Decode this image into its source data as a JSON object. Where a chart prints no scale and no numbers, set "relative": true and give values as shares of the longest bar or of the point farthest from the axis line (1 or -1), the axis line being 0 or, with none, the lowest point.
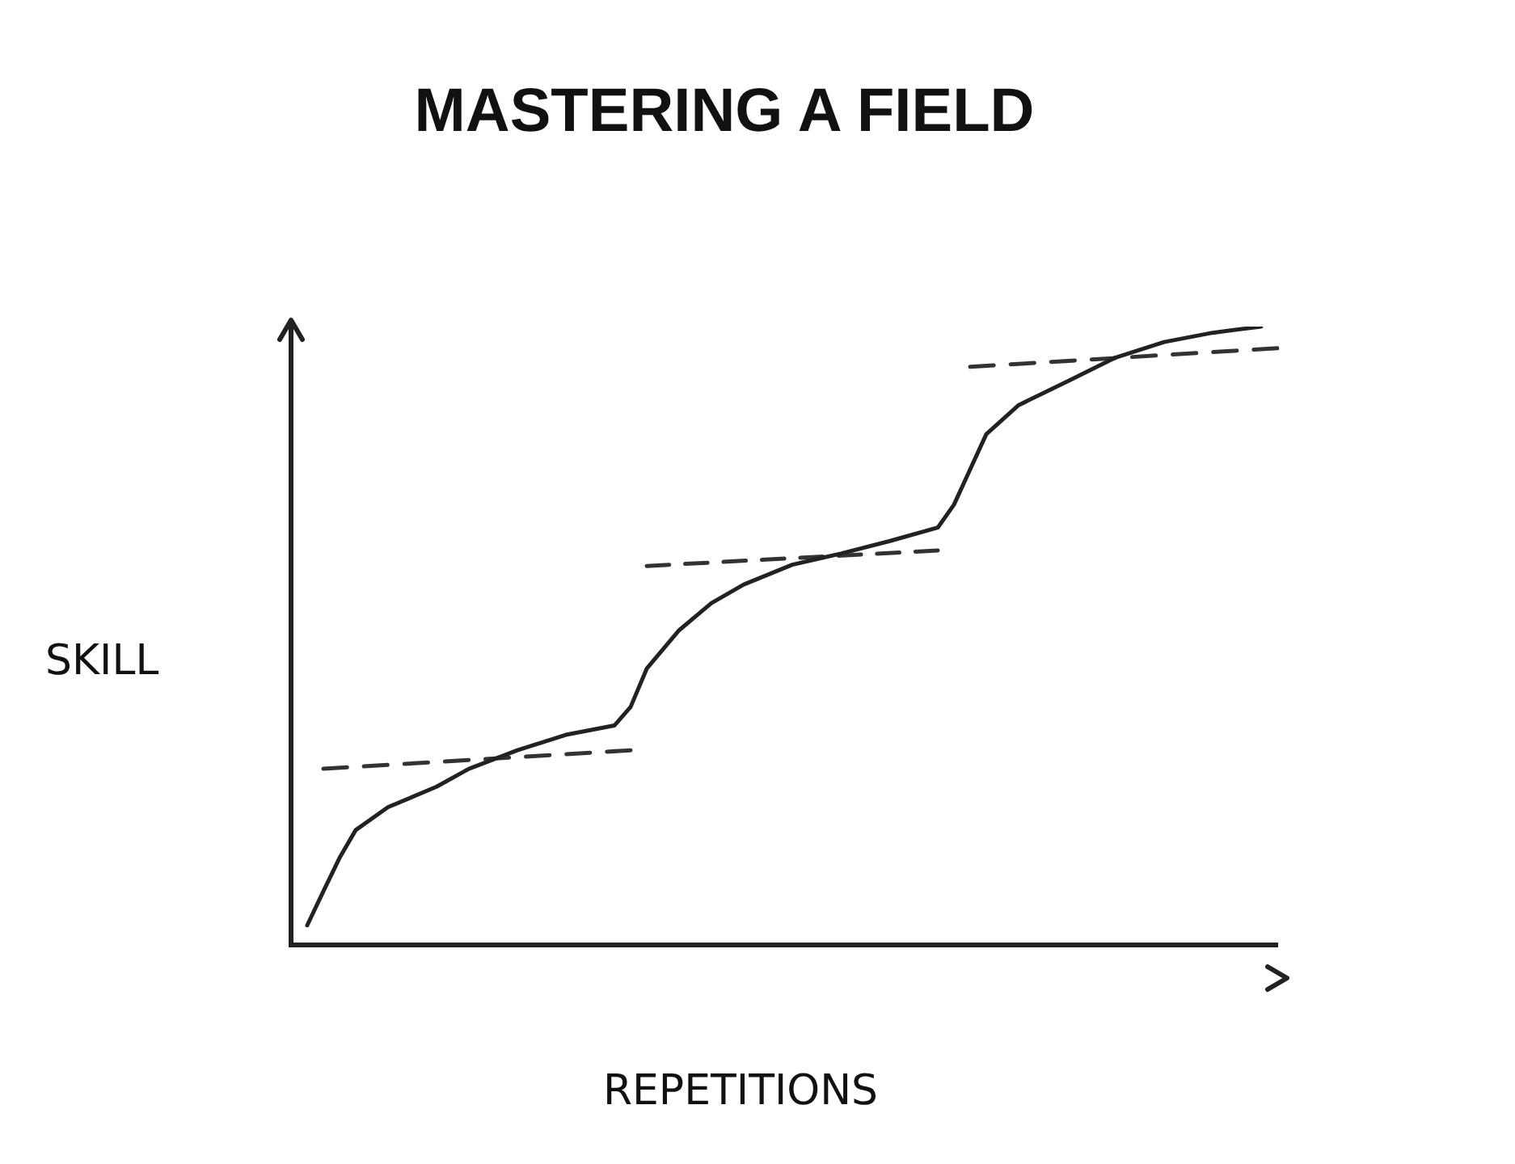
{
  "chart_data": {
    "type": "line",
    "title": "MASTERING A FIELD",
    "xlabel": "REPETITIONS",
    "ylabel": "SKILL",
    "relative": true,
    "grid": false,
    "legend": false,
    "categories": [
      null,
      null,
      null,
      null,
      null,
      null,
      null,
      null,
      null,
      null,
      null,
      null,
      null,
      null,
      null,
      null,
      null,
      null,
      null,
      null,
      null,
      null,
      null,
      null,
      null,
      null,
      null,
      null,
      null,
      null,
      null,
      null,
      null,
      null,
      null,
      null,
      null,
      null,
      null,
      null,
      null,
      null,
      null,
      null,
      null,
      null,
      null,
      null,
      null,
      null,
      null,
      null,
      null,
      null,
      null,
      null,
      null,
      null,
      null,
      null,
      null,
      null
    ],
    "series": [
      {
        "color": "#222222",
        "line_style": "solid",
        "values": [
          null,
          0.032,
          0.087,
          0.141,
          0.186,
          null,
          0.223,
          null,
          null,
          0.256,
          null,
          0.285,
          null,
          null,
          0.315,
          null,
          null,
          0.34,
          null,
          null,
          0.355,
          0.385,
          0.447,
          null,
          0.509,
          null,
          0.553,
          null,
          0.583,
          null,
          null,
          0.615,
          null,
          null,
          0.633,
          null,
          null,
          0.653,
          null,
          null,
          0.675,
          0.712,
          0.769,
          0.826,
          null,
          0.873,
          null,
          null,
          0.911,
          null,
          null,
          0.95,
          null,
          null,
          0.975,
          null,
          null,
          0.99,
          null,
          null,
          1.0,
          null
        ]
      },
      {
        "color": "#333333",
        "line_style": "dashed",
        "values": [
          null,
          null,
          0.285,
          null,
          null,
          null,
          null,
          null,
          null,
          null,
          null,
          null,
          null,
          null,
          null,
          null,
          null,
          null,
          null,
          null,
          null,
          0.315,
          null,
          null,
          null,
          null,
          null,
          null,
          null,
          null,
          null,
          null,
          null,
          null,
          null,
          null,
          null,
          null,
          null,
          null,
          null,
          null,
          null,
          null,
          null,
          null,
          null,
          null,
          null,
          null,
          null,
          null,
          null,
          null,
          null,
          null,
          null,
          null,
          null,
          null,
          null,
          null
        ]
      },
      {
        "color": "#333333",
        "line_style": "dashed",
        "values": [
          null,
          null,
          null,
          null,
          null,
          null,
          null,
          null,
          null,
          null,
          null,
          null,
          null,
          null,
          null,
          null,
          null,
          null,
          null,
          null,
          null,
          null,
          0.613,
          null,
          null,
          null,
          null,
          null,
          null,
          null,
          null,
          null,
          null,
          null,
          null,
          null,
          null,
          null,
          null,
          null,
          0.638,
          null,
          null,
          null,
          null,
          null,
          null,
          null,
          null,
          null,
          null,
          null,
          null,
          null,
          null,
          null,
          null,
          null,
          null,
          null,
          null,
          null
        ]
      },
      {
        "color": "#333333",
        "line_style": "dashed",
        "values": [
          null,
          null,
          null,
          null,
          null,
          null,
          null,
          null,
          null,
          null,
          null,
          null,
          null,
          null,
          null,
          null,
          null,
          null,
          null,
          null,
          null,
          null,
          null,
          null,
          null,
          null,
          null,
          null,
          null,
          null,
          null,
          null,
          null,
          null,
          null,
          null,
          null,
          null,
          null,
          null,
          null,
          null,
          0.935,
          null,
          null,
          null,
          null,
          null,
          null,
          null,
          null,
          null,
          null,
          null,
          null,
          null,
          null,
          null,
          null,
          null,
          null,
          0.965
        ]
      }
    ]
  }
}
